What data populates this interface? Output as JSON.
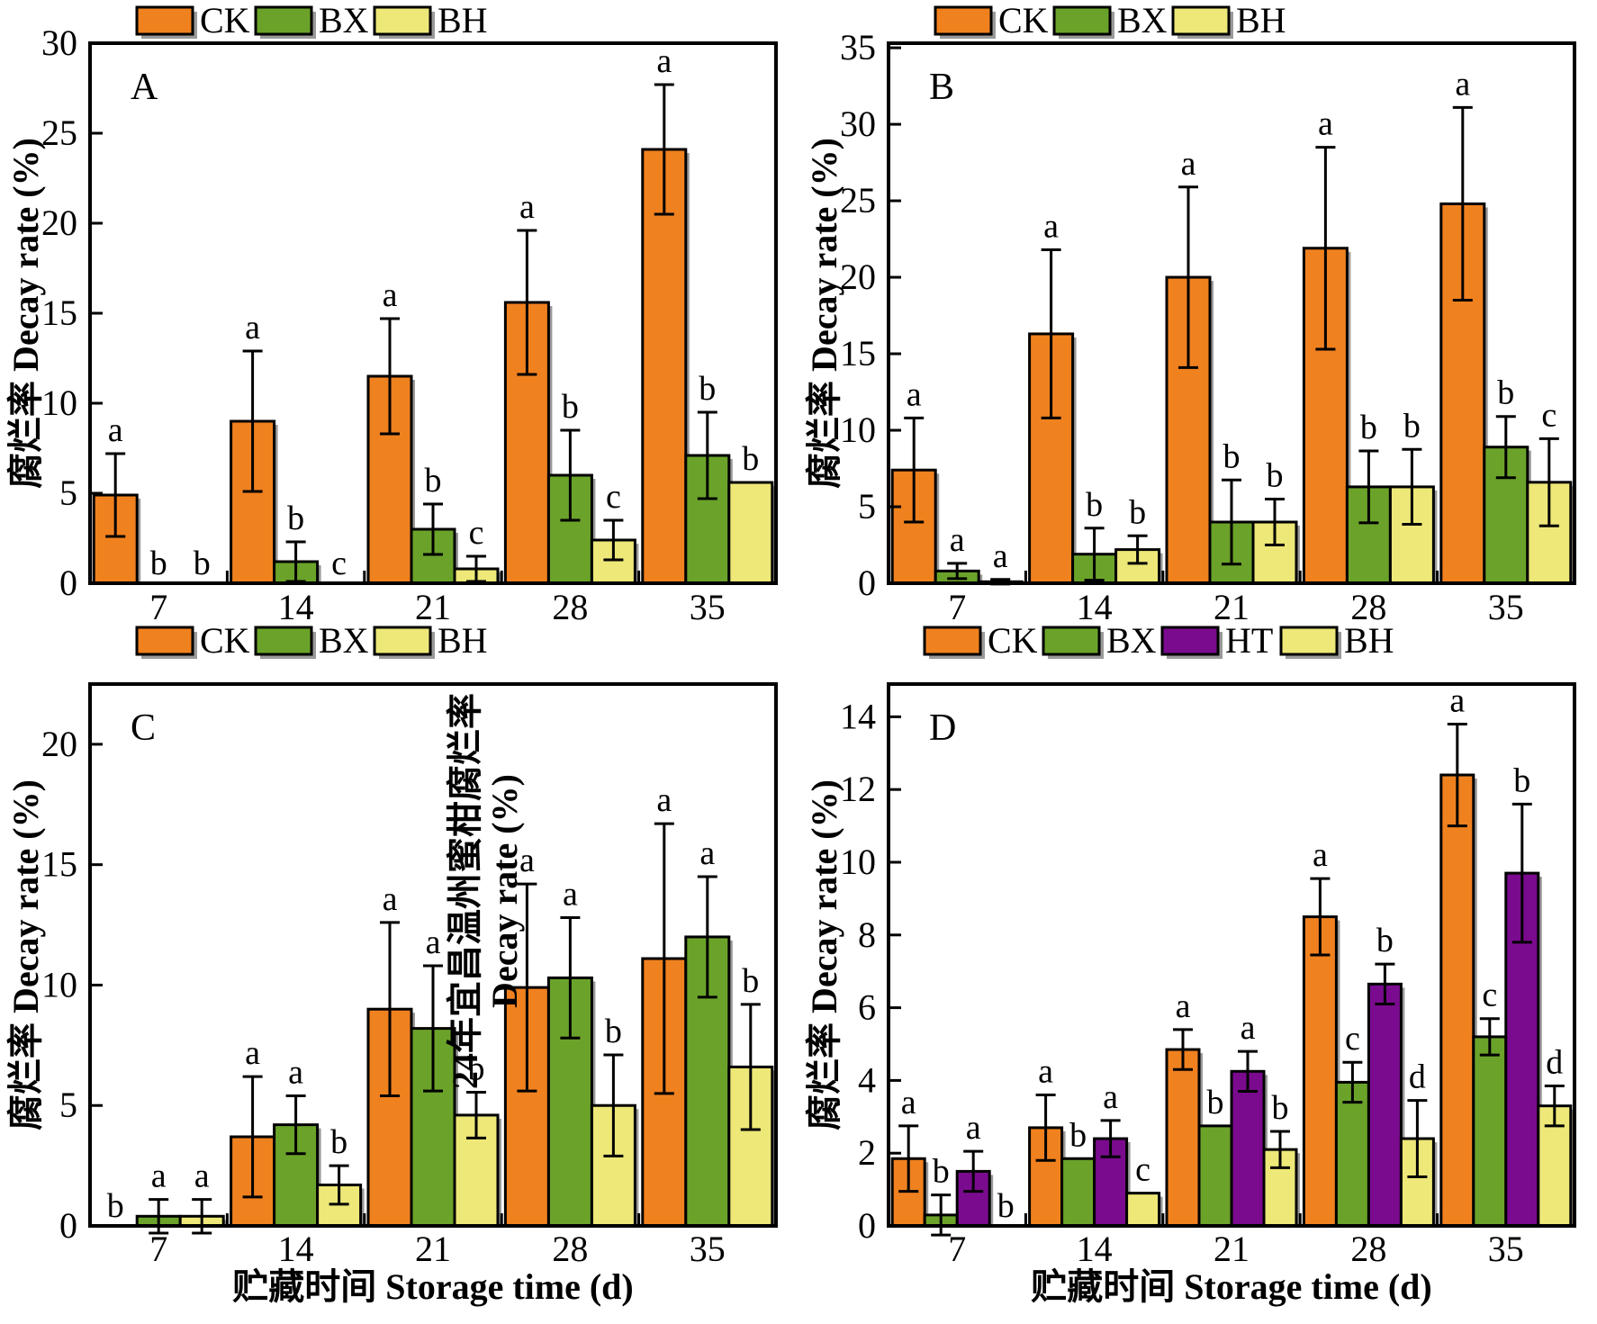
{
  "figure": {
    "xlabel": "贮藏时间 Storage time (d)",
    "ylabel": "腐烂率 Decay rate (%)",
    "colors": {
      "CK": "#F0811F",
      "BX": "#6BA32A",
      "HT": "#7A0B8E",
      "BH": "#EDE878",
      "outline": "#000000",
      "shadow": "#9a9a9a"
    }
  },
  "chart_data": [
    {
      "type": "bar",
      "panel": "A",
      "title": "",
      "xlabel": "",
      "ylabel": "腐烂率 Decay rate (%)",
      "categories": [
        "7",
        "14",
        "21",
        "28",
        "35"
      ],
      "ylim": [
        0,
        30
      ],
      "yticks": [
        0,
        5,
        10,
        15,
        20,
        25,
        30
      ],
      "grid": false,
      "legend_position": "top",
      "legend": [
        "CK",
        "BX",
        "BH"
      ],
      "series": [
        {
          "name": "CK",
          "color": "#F0811F",
          "values": [
            4.9,
            9.0,
            11.5,
            15.6,
            24.1
          ],
          "errors": [
            2.3,
            3.9,
            3.2,
            4.0,
            3.6
          ],
          "letters": [
            "a",
            "a",
            "a",
            "a",
            "a"
          ]
        },
        {
          "name": "BX",
          "color": "#6BA32A",
          "values": [
            0,
            1.2,
            3.0,
            6.0,
            7.1
          ],
          "errors": [
            null,
            1.1,
            1.4,
            2.5,
            2.4
          ],
          "letters": [
            "b",
            "b",
            "b",
            "b",
            "b"
          ]
        },
        {
          "name": "BH",
          "color": "#EDE878",
          "values": [
            0,
            0,
            0.8,
            2.4,
            5.6
          ],
          "errors": [
            null,
            null,
            0.7,
            1.1,
            null
          ],
          "letters": [
            "b",
            "c",
            "c",
            "c",
            "b"
          ]
        }
      ]
    },
    {
      "type": "bar",
      "panel": "B",
      "title": "",
      "xlabel": "",
      "ylabel": "腐烂率 Decay rate (%)",
      "categories": [
        "7",
        "14",
        "21",
        "28",
        "35"
      ],
      "ylim": [
        0,
        35.3
      ],
      "yticks": [
        0,
        5,
        10,
        15,
        20,
        25,
        30,
        35
      ],
      "grid": false,
      "legend_position": "top",
      "legend": [
        "CK",
        "BX",
        "BH"
      ],
      "series": [
        {
          "name": "CK",
          "color": "#F0811F",
          "values": [
            7.4,
            16.3,
            20.0,
            21.9,
            24.8
          ],
          "errors": [
            3.4,
            5.5,
            5.9,
            6.6,
            6.3
          ],
          "letters": [
            "a",
            "a",
            "a",
            "a",
            "a"
          ]
        },
        {
          "name": "BX",
          "color": "#6BA32A",
          "values": [
            0.8,
            1.9,
            4.0,
            6.3,
            8.9
          ],
          "errors": [
            0.5,
            1.7,
            2.75,
            2.35,
            2.0
          ],
          "letters": [
            "a",
            "b",
            "b",
            "b",
            "b"
          ]
        },
        {
          "name": "BH",
          "color": "#EDE878",
          "values": [
            0.1,
            2.2,
            4.0,
            6.3,
            6.6
          ],
          "errors": [
            0.15,
            0.9,
            1.5,
            2.45,
            2.85
          ],
          "letters": [
            "a",
            "b",
            "b",
            "b",
            "c"
          ]
        }
      ]
    },
    {
      "type": "bar",
      "panel": "C",
      "title": "",
      "xlabel": "贮藏时间 Storage time (d)",
      "ylabel": "腐烂率 Decay rate (%)",
      "categories": [
        "7",
        "14",
        "21",
        "28",
        "35"
      ],
      "ylim": [
        0,
        22.5
      ],
      "yticks": [
        0,
        5,
        10,
        15,
        20
      ],
      "grid": false,
      "legend_position": "top",
      "legend": [
        "CK",
        "BX",
        "BH"
      ],
      "annotation": {
        "lines": [
          "24年宜昌温州蜜柑腐烂率",
          "Decay rate (%)"
        ],
        "rotation": -90
      },
      "series": [
        {
          "name": "CK",
          "color": "#F0811F",
          "values": [
            0,
            3.7,
            9.0,
            9.9,
            11.1
          ],
          "errors": [
            null,
            2.5,
            3.6,
            4.3,
            5.6
          ],
          "letters": [
            "b",
            "a",
            "a",
            "a",
            "a"
          ]
        },
        {
          "name": "BX",
          "color": "#6BA32A",
          "values": [
            0.4,
            4.2,
            8.2,
            10.3,
            12.0
          ],
          "errors": [
            0.7,
            1.2,
            2.6,
            2.5,
            2.5
          ],
          "letters": [
            "a",
            "a",
            "a",
            "a",
            "a"
          ]
        },
        {
          "name": "BH",
          "color": "#EDE878",
          "values": [
            0.4,
            1.7,
            4.6,
            5.0,
            6.6
          ],
          "errors": [
            0.7,
            0.8,
            0.95,
            2.1,
            2.6
          ],
          "letters": [
            "a",
            "b",
            "b",
            "b",
            "b"
          ]
        }
      ]
    },
    {
      "type": "bar",
      "panel": "D",
      "title": "",
      "xlabel": "贮藏时间 Storage time (d)",
      "ylabel": "腐烂率 Decay rate (%)",
      "categories": [
        "7",
        "14",
        "21",
        "28",
        "35"
      ],
      "ylim": [
        0,
        14.9
      ],
      "yticks": [
        0,
        2,
        4,
        6,
        8,
        10,
        12,
        14
      ],
      "grid": false,
      "legend_position": "top",
      "legend": [
        "CK",
        "BX",
        "HT",
        "BH"
      ],
      "series": [
        {
          "name": "CK",
          "color": "#F0811F",
          "values": [
            1.85,
            2.7,
            4.85,
            8.5,
            12.4
          ],
          "errors": [
            0.9,
            0.9,
            0.55,
            1.05,
            1.4
          ],
          "letters": [
            "a",
            "a",
            "a",
            "a",
            "a"
          ]
        },
        {
          "name": "BX",
          "color": "#6BA32A",
          "values": [
            0.3,
            1.85,
            2.75,
            3.95,
            5.2
          ],
          "errors": [
            0.55,
            null,
            null,
            0.55,
            0.5
          ],
          "letters": [
            "b",
            "b",
            "b",
            "c",
            "c"
          ]
        },
        {
          "name": "HT",
          "color": "#7A0B8E",
          "values": [
            1.5,
            2.4,
            4.25,
            6.65,
            9.7
          ],
          "errors": [
            0.55,
            0.5,
            0.55,
            0.55,
            1.9
          ],
          "letters": [
            "a",
            "a",
            "a",
            "b",
            "b"
          ]
        },
        {
          "name": "BH",
          "color": "#EDE878",
          "values": [
            0,
            0.9,
            2.1,
            2.4,
            3.3
          ],
          "errors": [
            null,
            null,
            0.5,
            1.05,
            0.55
          ],
          "letters": [
            "b",
            "c",
            "b",
            "d",
            "d"
          ]
        }
      ]
    }
  ]
}
